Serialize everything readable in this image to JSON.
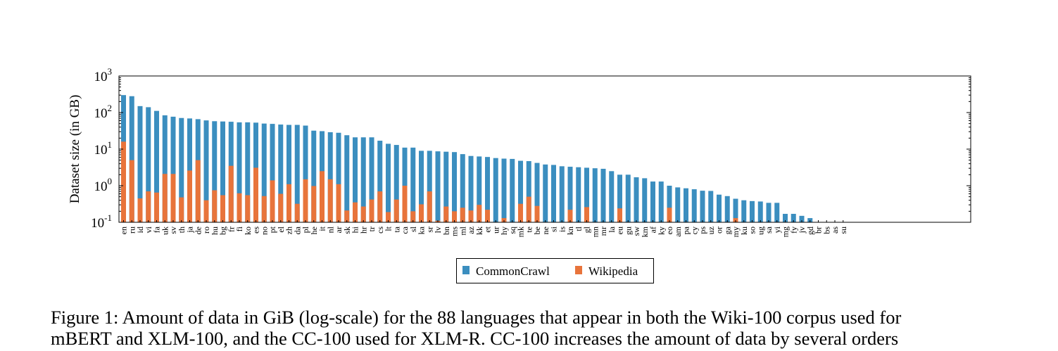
{
  "chart_data": {
    "type": "bar",
    "ylabel": "Dataset size (in GB)",
    "yscale": "log",
    "ylim": [
      0.1,
      1000
    ],
    "yticks": [
      {
        "base": "10",
        "exp": "-1",
        "value": 0.1
      },
      {
        "base": "10",
        "exp": "0",
        "value": 1
      },
      {
        "base": "10",
        "exp": "1",
        "value": 10
      },
      {
        "base": "10",
        "exp": "2",
        "value": 100
      },
      {
        "base": "10",
        "exp": "3",
        "value": 1000
      }
    ],
    "legend_position": "bottom-center",
    "categories": [
      "en",
      "ru",
      "id",
      "vi",
      "fa",
      "uk",
      "sv",
      "th",
      "ja",
      "de",
      "ro",
      "hu",
      "bg",
      "fr",
      "fi",
      "ko",
      "es",
      "no",
      "pt",
      "el",
      "zh",
      "da",
      "pl",
      "he",
      "it",
      "nl",
      "ar",
      "sk",
      "hi",
      "hr",
      "tr",
      "cs",
      "lt",
      "ta",
      "ca",
      "sl",
      "ka",
      "sr",
      "lv",
      "bn",
      "ms",
      "ml",
      "az",
      "kk",
      "et",
      "ur",
      "hy",
      "sq",
      "mk",
      "te",
      "be",
      "ne",
      "si",
      "is",
      "kn",
      "tl",
      "gl",
      "mn",
      "mr",
      "la",
      "eu",
      "gu",
      "sw",
      "km",
      "af",
      "ky",
      "eo",
      "am",
      "pa",
      "cy",
      "ps",
      "uz",
      "or",
      "ga",
      "my",
      "ku",
      "so",
      "ug",
      "sa",
      "yi",
      "mg",
      "fy",
      "jv",
      "gd",
      "br",
      "bs",
      "as",
      "su"
    ],
    "series": [
      {
        "name": "CommonCrawl",
        "color": "#3b8ebf",
        "values": [
          300,
          280,
          150,
          140,
          111,
          84,
          77,
          71,
          69,
          66,
          61,
          58,
          57,
          56,
          54,
          54,
          53,
          50,
          49,
          47,
          46,
          46,
          44,
          32,
          31,
          29,
          28,
          24,
          21,
          21,
          21,
          17,
          14,
          13,
          11,
          11,
          9,
          9,
          8.7,
          8.5,
          8.3,
          7.3,
          6.5,
          6.3,
          6.1,
          5.7,
          5.5,
          5.4,
          4.8,
          4.7,
          4.2,
          3.8,
          3.7,
          3.4,
          3.3,
          3.2,
          3.1,
          3.0,
          2.9,
          2.5,
          2.0,
          2.0,
          1.7,
          1.6,
          1.3,
          1.3,
          1.0,
          0.9,
          0.85,
          0.8,
          0.73,
          0.72,
          0.57,
          0.52,
          0.44,
          0.4,
          0.38,
          0.37,
          0.34,
          0.34,
          0.17,
          0.17,
          0.15,
          0.13,
          0.1,
          0.1,
          0.1,
          0.1
        ]
      },
      {
        "name": "Wikipedia",
        "color": "#e8743b",
        "values": [
          16,
          5,
          0.45,
          0.7,
          0.65,
          2.1,
          2.1,
          0.48,
          2.6,
          5,
          0.4,
          0.75,
          0.55,
          3.5,
          0.62,
          0.55,
          3.1,
          0.52,
          1.4,
          0.6,
          1.1,
          0.32,
          1.5,
          0.98,
          2.5,
          1.5,
          1.1,
          0.21,
          0.35,
          0.27,
          0.42,
          0.7,
          0.19,
          0.42,
          1.0,
          0.2,
          0.31,
          0.7,
          0.11,
          0.27,
          0.2,
          0.25,
          0.21,
          0.3,
          0.22,
          0.1,
          0.13,
          0.1,
          0.32,
          0.5,
          0.28,
          0.1,
          0.1,
          0.1,
          0.22,
          0.1,
          0.26,
          0.1,
          0.1,
          0.1,
          0.24,
          0.1,
          0.1,
          0.1,
          0.1,
          0.1,
          0.25,
          0.1,
          0.1,
          0.1,
          0.1,
          0.1,
          0.1,
          0.1,
          0.13,
          0.1,
          0.1,
          0.1,
          0.1,
          0.1,
          0.1,
          0.1,
          0.1,
          0.1,
          0.1,
          0.1,
          0.1,
          0.1
        ]
      }
    ]
  },
  "caption": {
    "line1": "Figure 1: Amount of data in GiB (log-scale) for the 88 languages that appear in both the Wiki-100 corpus used for",
    "line2": "mBERT and XLM-100, and the CC-100 used for XLM-R. CC-100 increases the amount of data by several orders"
  }
}
